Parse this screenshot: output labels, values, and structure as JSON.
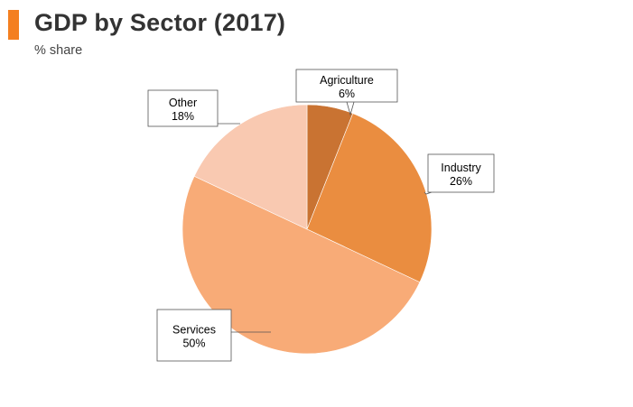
{
  "header": {
    "title": "GDP by Sector (2017)",
    "subtitle": "% share",
    "accent_color": "#f47f20"
  },
  "chart_data": {
    "type": "pie",
    "title": "GDP by Sector (2017)",
    "subtitle": "% share",
    "start_angle_deg": 0,
    "direction": "clockwise",
    "slices": [
      {
        "label": "Agriculture",
        "value": 6,
        "value_label": "6%",
        "color": "#c97332"
      },
      {
        "label": "Industry",
        "value": 26,
        "value_label": "26%",
        "color": "#ea8d40"
      },
      {
        "label": "Services",
        "value": 50,
        "value_label": "50%",
        "color": "#f8ab77"
      },
      {
        "label": "Other",
        "value": 18,
        "value_label": "18%",
        "color": "#f9c9b1"
      }
    ],
    "legend": "none",
    "labels": "callout-boxes"
  }
}
